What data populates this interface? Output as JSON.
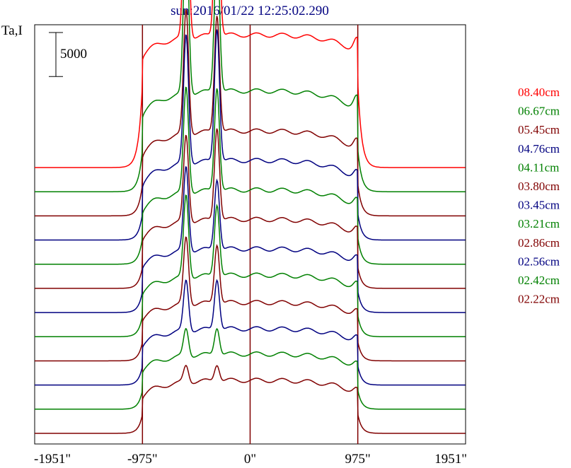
{
  "chart_data": {
    "type": "line",
    "title": "sun:2016/01/22 12:25:02.290",
    "ylabel": "Ta,I",
    "scale_bar_label": "5000",
    "scale_bar_value": 5000,
    "xlim": [
      -1951,
      1951
    ],
    "x_ticks": [
      {
        "value": -1951,
        "label": "-1951\""
      },
      {
        "value": -975,
        "label": "-975\""
      },
      {
        "value": 0,
        "label": "0\""
      },
      {
        "value": 975,
        "label": "975\""
      },
      {
        "value": 1951,
        "label": "1951\""
      }
    ],
    "vertical_lines": [
      -975,
      0,
      975
    ],
    "grid": false,
    "legend_position": "right",
    "series": [
      {
        "name": "08.40cm",
        "color": "#ff0000",
        "baseline": 0,
        "limb": 8000,
        "d1": 12500,
        "d2": 10200,
        "cap": 1600,
        "p1": 18500,
        "p2": 16800
      },
      {
        "name": "06.67cm",
        "color": "#008000",
        "baseline": 0,
        "limb": 4000,
        "d1": 9500,
        "d2": 7000,
        "cap": 1600,
        "p1": 16000,
        "p2": 14200
      },
      {
        "name": "05.45cm",
        "color": "#800000",
        "baseline": 0,
        "limb": 3000,
        "d1": 8000,
        "d2": 5500,
        "cap": 1300,
        "p1": 11800,
        "p2": 11100
      },
      {
        "name": "04.76cm",
        "color": "#000080",
        "baseline": 0,
        "limb": 2500,
        "d1": 7500,
        "d2": 5000,
        "cap": 1100,
        "p1": 12200,
        "p2": 12600
      },
      {
        "name": "04.11cm",
        "color": "#008000",
        "baseline": 0,
        "limb": 2500,
        "d1": 7000,
        "d2": 4800,
        "cap": 1000,
        "p1": 10000,
        "p2": 9800
      },
      {
        "name": "03.80cm",
        "color": "#800000",
        "baseline": 0,
        "limb": 2000,
        "d1": 6500,
        "d2": 4500,
        "cap": 900,
        "p1": 8200,
        "p2": 8800
      },
      {
        "name": "03.45cm",
        "color": "#000080",
        "baseline": 0,
        "limb": 2000,
        "d1": 6000,
        "d2": 4200,
        "cap": 800,
        "p1": 8000,
        "p2": 6700
      },
      {
        "name": "03.21cm",
        "color": "#008000",
        "baseline": 0,
        "limb": 2000,
        "d1": 5800,
        "d2": 4000,
        "cap": 800,
        "p1": 7800,
        "p2": 6800
      },
      {
        "name": "02.86cm",
        "color": "#800000",
        "baseline": 0,
        "limb": 1800,
        "d1": 5500,
        "d2": 3800,
        "cap": 700,
        "p1": 6400,
        "p2": 5600
      },
      {
        "name": "02.56cm",
        "color": "#000080",
        "baseline": 0,
        "limb": 1800,
        "d1": 5300,
        "d2": 3600,
        "cap": 700,
        "p1": 4800,
        "p2": 4800
      },
      {
        "name": "02.42cm",
        "color": "#008000",
        "baseline": 0,
        "limb": 1800,
        "d1": 5200,
        "d2": 3500,
        "cap": 600,
        "p1": 2600,
        "p2": 2600
      },
      {
        "name": "02.22cm",
        "color": "#800000",
        "baseline": 0,
        "limb": 1800,
        "d1": 5000,
        "d2": 3300,
        "cap": 600,
        "p1": 1600,
        "p2": 1600
      }
    ]
  }
}
